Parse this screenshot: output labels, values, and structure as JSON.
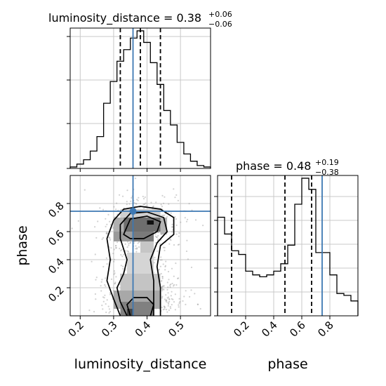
{
  "chart_data": [
    {
      "type": "histogram",
      "panel": "top-left",
      "title": "luminosity_distance = 0.38",
      "title_upper": "+0.06",
      "title_lower": "−0.06",
      "xlim": [
        0.17,
        0.59
      ],
      "bins": [
        0.17,
        0.19,
        0.21,
        0.23,
        0.25,
        0.27,
        0.29,
        0.31,
        0.33,
        0.35,
        0.37,
        0.39,
        0.41,
        0.43,
        0.45,
        0.47,
        0.49,
        0.51,
        0.53,
        0.55,
        0.57,
        0.59
      ],
      "counts": [
        1,
        3,
        6,
        12,
        22,
        45,
        60,
        74,
        82,
        90,
        95,
        87,
        73,
        58,
        40,
        30,
        18,
        10,
        5,
        2,
        1
      ],
      "quantile_lines": [
        0.32,
        0.38,
        0.44
      ],
      "truth": 0.358,
      "grid": true
    },
    {
      "type": "histogram",
      "panel": "bottom-right",
      "title": "phase = 0.48",
      "title_upper": "+0.19",
      "title_lower": "−0.38",
      "xlabel": "phase",
      "xlim": [
        0.0,
        1.0
      ],
      "xticks": [
        "0.2",
        "0.4",
        "0.6",
        "0.8"
      ],
      "bins": [
        0.0,
        0.05,
        0.1,
        0.15,
        0.2,
        0.25,
        0.3,
        0.35,
        0.4,
        0.45,
        0.5,
        0.55,
        0.6,
        0.65,
        0.7,
        0.75,
        0.8,
        0.85,
        0.9,
        0.95,
        1.0
      ],
      "counts": [
        53,
        44,
        35,
        33,
        24,
        22,
        21,
        22,
        24,
        28,
        38,
        60,
        74,
        68,
        34,
        34,
        22,
        12,
        11,
        8
      ],
      "quantile_lines": [
        0.1,
        0.48,
        0.67
      ],
      "truth": 0.745,
      "grid": true
    },
    {
      "type": "scatter",
      "panel": "bottom-left",
      "xlabel": "luminosity_distance",
      "ylabel": "phase",
      "xlim": [
        0.17,
        0.59
      ],
      "ylim": [
        0.0,
        1.0
      ],
      "xticks": [
        "0.2",
        "0.3",
        "0.4",
        "0.5"
      ],
      "yticks": [
        "0.2",
        "0.4",
        "0.6",
        "0.8"
      ],
      "truth": [
        0.358,
        0.745
      ],
      "grid": true
    }
  ]
}
